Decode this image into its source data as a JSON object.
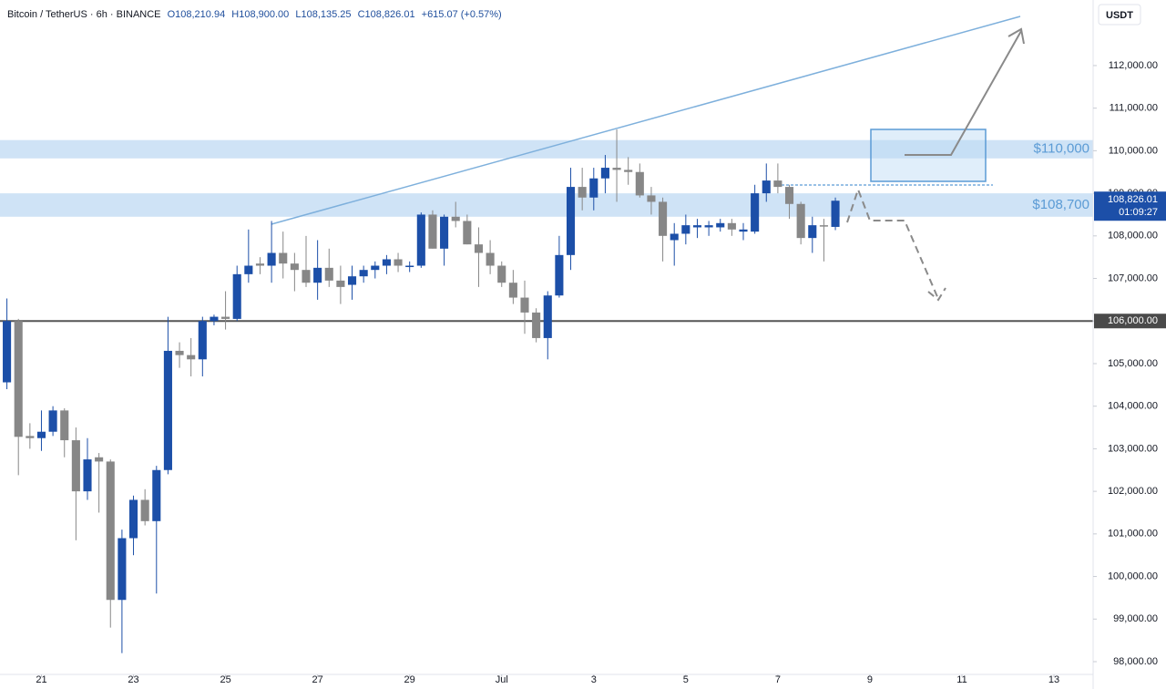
{
  "chart_data": {
    "type": "candlestick",
    "title": "Bitcoin / TetherUS · 6h · BINANCE",
    "legend": [
      "O108,210.94",
      "H108,900.00",
      "L108,135.25",
      "C108,826.01",
      "+615.07 (+0.57%)"
    ],
    "currency": "USDT",
    "x": [
      20.25,
      20.5,
      20.75,
      21,
      21.25,
      21.5,
      21.75,
      22,
      22.25,
      22.5,
      22.75,
      23,
      23.25,
      23.5,
      23.75,
      24,
      24.25,
      24.5,
      24.75,
      25,
      25.25,
      25.5,
      25.75,
      26,
      26.25,
      26.5,
      26.75,
      27,
      27.25,
      27.5,
      27.75,
      28,
      28.25,
      28.5,
      28.75,
      29,
      29.25,
      29.5,
      29.75,
      30,
      30.25,
      30.5,
      30.75,
      31,
      31.25,
      31.5,
      31.75,
      32,
      32.25,
      32.5,
      32.75,
      33,
      33.25,
      33.5,
      33.75,
      34,
      34.25,
      34.5,
      34.75,
      35,
      35.25,
      35.5,
      35.75,
      36,
      36.25,
      36.5,
      36.75,
      37,
      37.25,
      37.5,
      37.75,
      38,
      38.25
    ],
    "series": {
      "open": [
        104560,
        106000,
        103300,
        103250,
        103400,
        103900,
        103200,
        102000,
        102800,
        102700,
        99450,
        100900,
        101800,
        101300,
        102500,
        105300,
        105200,
        105100,
        106000,
        106100,
        106050,
        107100,
        107350,
        107300,
        107600,
        107350,
        107200,
        106900,
        107250,
        106950,
        106850,
        107050,
        107200,
        107300,
        107450,
        107300,
        107300,
        108500,
        107700,
        108450,
        108350,
        107800,
        107600,
        107300,
        106900,
        106550,
        106200,
        105600,
        106600,
        107550,
        109150,
        108900,
        109350,
        109600,
        109550,
        109500,
        108950,
        108800,
        107900,
        108050,
        108200,
        108200,
        108200,
        108300,
        108100,
        108100,
        109000,
        109300,
        109150,
        108750,
        107950,
        108250,
        108210.94
      ],
      "high": [
        106530,
        106050,
        103600,
        103900,
        104000,
        103950,
        103500,
        103250,
        102900,
        102750,
        101100,
        101900,
        102050,
        102600,
        106100,
        105500,
        105600,
        106100,
        106150,
        106700,
        107300,
        108150,
        107500,
        108350,
        108100,
        107600,
        108000,
        107900,
        107700,
        107300,
        107300,
        107300,
        107400,
        107550,
        107600,
        107400,
        108550,
        108600,
        108500,
        108800,
        108500,
        108200,
        107900,
        107400,
        107200,
        106950,
        106300,
        106700,
        108000,
        109600,
        109600,
        109600,
        109900,
        110500,
        109850,
        109700,
        109150,
        108900,
        108300,
        108500,
        108400,
        108350,
        108400,
        108400,
        108300,
        109200,
        109700,
        109700,
        109200,
        108800,
        108450,
        108400,
        108900
      ],
      "low": [
        104400,
        102380,
        103000,
        102950,
        103300,
        102800,
        100850,
        101800,
        101500,
        98800,
        98200,
        100500,
        101200,
        99600,
        102400,
        104900,
        104700,
        104700,
        105900,
        105800,
        106000,
        106900,
        107100,
        106900,
        107000,
        106700,
        106800,
        106500,
        106800,
        106400,
        106500,
        106900,
        107000,
        107100,
        107150,
        107150,
        107250,
        107700,
        107300,
        108200,
        107800,
        106800,
        107100,
        106800,
        106400,
        105700,
        105500,
        105100,
        106550,
        107200,
        108600,
        108600,
        109000,
        108800,
        109200,
        108900,
        108500,
        107400,
        107300,
        107800,
        107950,
        108000,
        108100,
        108000,
        107900,
        108050,
        108800,
        109000,
        108400,
        107800,
        107600,
        107400,
        108135.25
      ],
      "close": [
        106000,
        103280,
        103250,
        103400,
        103900,
        103200,
        102000,
        102750,
        102700,
        99450,
        100900,
        101800,
        101300,
        102500,
        105300,
        105200,
        105100,
        106000,
        106100,
        106050,
        107100,
        107300,
        107300,
        107600,
        107350,
        107200,
        106900,
        107250,
        106950,
        106800,
        107050,
        107200,
        107300,
        107450,
        107300,
        107300,
        108500,
        107700,
        108450,
        108350,
        107800,
        107600,
        107300,
        106900,
        106550,
        106200,
        105600,
        106600,
        107550,
        109150,
        108900,
        109350,
        109600,
        109550,
        109500,
        108950,
        108800,
        108000,
        108050,
        108250,
        108250,
        108250,
        108300,
        108150,
        108150,
        109000,
        109300,
        109150,
        108750,
        107950,
        108250,
        108220,
        108826.01
      ]
    },
    "up_color": "#1c4fa8",
    "down_color": "#878787",
    "xlim": [
      20.1,
      43.85
    ],
    "xticks": [
      21,
      23,
      25,
      27,
      29,
      {
        "value": 31,
        "label": "Jul"
      },
      {
        "value": 33,
        "label": "3"
      },
      {
        "value": 35,
        "label": "5"
      },
      {
        "value": 37,
        "label": "7"
      },
      {
        "value": 39,
        "label": "9"
      },
      {
        "value": 41,
        "label": "11"
      },
      {
        "value": 43,
        "label": "13"
      }
    ],
    "ylim": [
      97700,
      113540
    ],
    "yticks": [
      {
        "value": 98000,
        "label": "98,000.00"
      },
      {
        "value": 99000,
        "label": "99,000.00"
      },
      {
        "value": 100000,
        "label": "100,000.00"
      },
      {
        "value": 101000,
        "label": "101,000.00"
      },
      {
        "value": 102000,
        "label": "102,000.00"
      },
      {
        "value": 103000,
        "label": "103,000.00"
      },
      {
        "value": 104000,
        "label": "104,000.00"
      },
      {
        "value": 105000,
        "label": "105,000.00"
      },
      {
        "value": 106000,
        "label": "106,000.00"
      },
      {
        "value": 107000,
        "label": "107,000.00"
      },
      {
        "value": 108000,
        "label": "108,000.00"
      },
      {
        "value": 109000,
        "label": "109,000.00"
      },
      {
        "value": 110000,
        "label": "110,000.00"
      },
      {
        "value": 111000,
        "label": "111,000.00"
      },
      {
        "value": 112000,
        "label": "112,000.00"
      }
    ],
    "zones": [
      {
        "label": "$110,000",
        "low": 109820,
        "high": 110250
      },
      {
        "label": "$108,700",
        "low": 108450,
        "high": 109000
      }
    ],
    "level": {
      "value": 106000,
      "label": "106,000.00"
    },
    "last_price": {
      "value": 108826.01,
      "label": "108,826.01"
    },
    "countdown": "01:09:27",
    "grid": false
  }
}
